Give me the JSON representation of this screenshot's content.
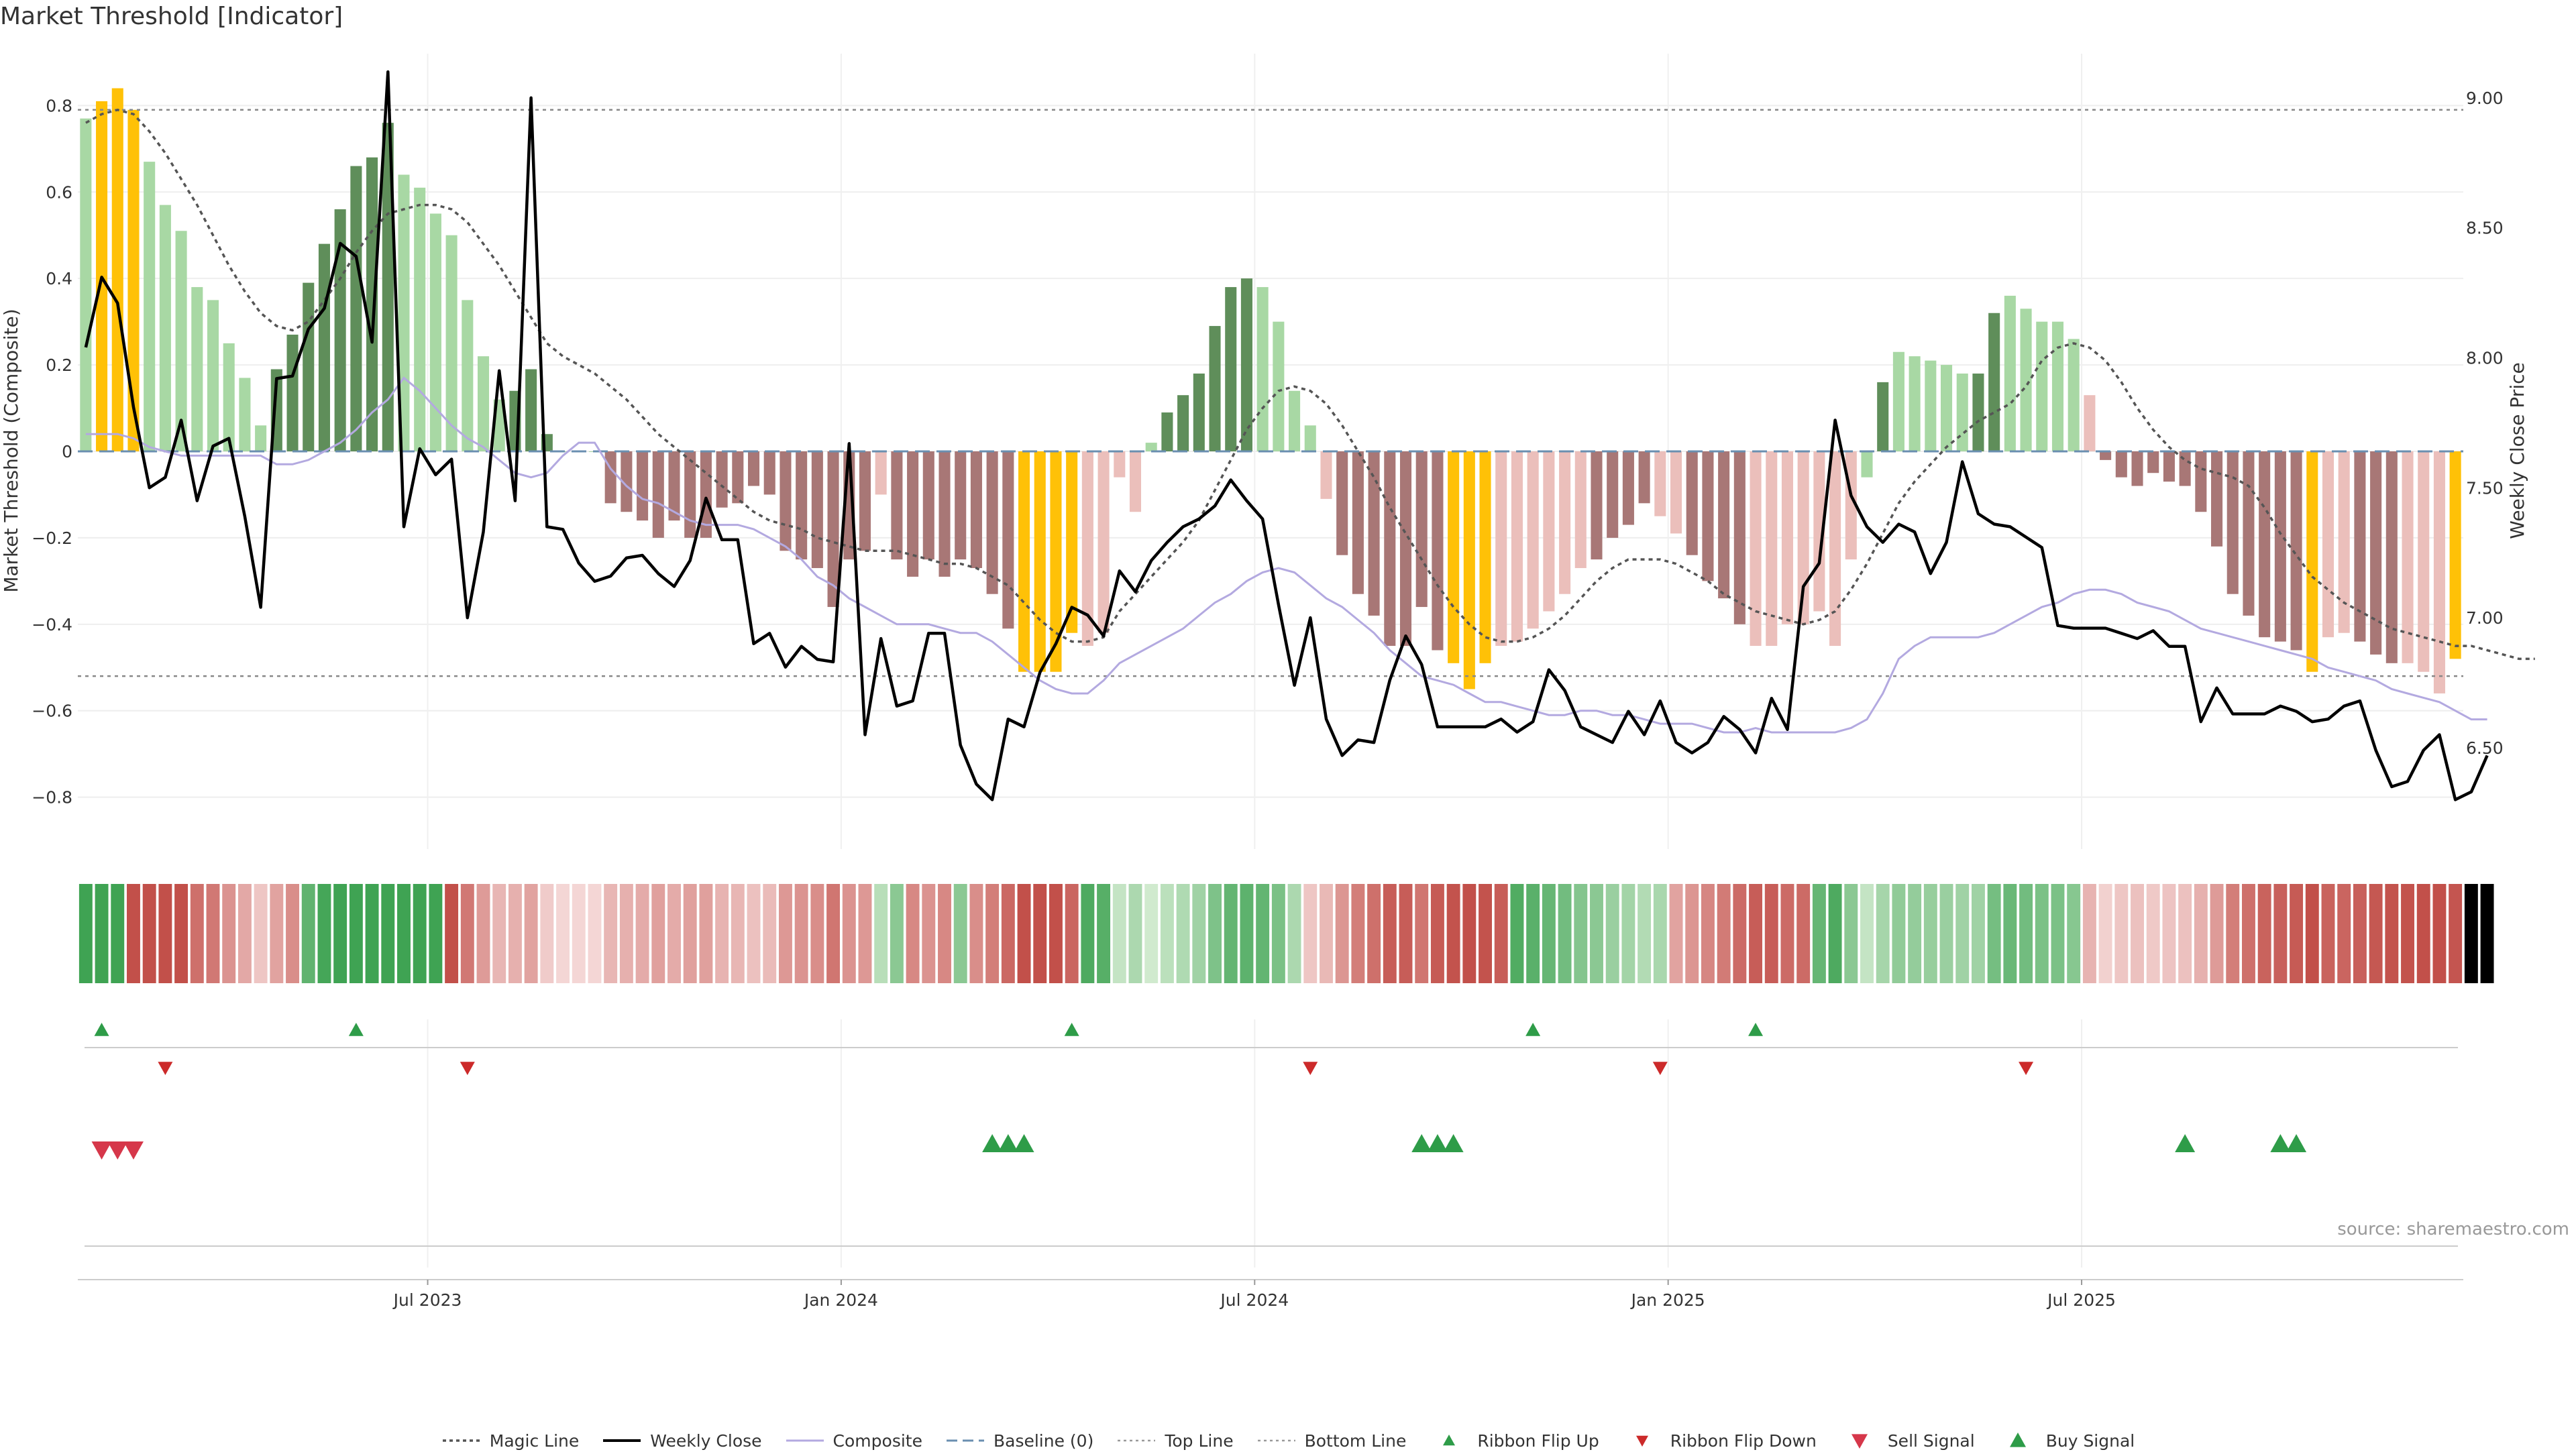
{
  "title": "Market Threshold [Indicator]",
  "source": "source: sharemaestro.com",
  "colors": {
    "strong_green": "#5f8e5a",
    "light_green": "#a8d8a4",
    "strong_red": "#a87776",
    "light_red": "#ebbfbb",
    "gold": "#ffc107",
    "weekly_close": "#000000",
    "magic_line": "#555555",
    "composite": "#b3a9e0",
    "baseline": "#6a8fb0",
    "buy": "#2e9c48",
    "sell": "#d6374a",
    "flip_up": "#2e9c48",
    "flip_down": "#cc2a2a"
  },
  "chart_data": {
    "type": "bar",
    "xlabel": "",
    "ylabel_left": "Market Threshold (Composite)",
    "ylabel_right": "Weekly Close Price",
    "left_ylim": [
      -0.92,
      0.92
    ],
    "right_ylim": [
      6.11,
      9.17
    ],
    "left_ticks": [
      "0.8",
      "0.6",
      "0.4",
      "0.2",
      "0",
      "−0.2",
      "−0.4",
      "−0.6",
      "−0.8"
    ],
    "right_ticks": [
      "9.00",
      "8.50",
      "8.00",
      "7.50",
      "7.00",
      "6.50"
    ],
    "x_ticks": [
      {
        "label": "Jul 2023",
        "week": 21.5
      },
      {
        "label": "Jan 2024",
        "week": 47.5
      },
      {
        "label": "Jul 2024",
        "week": 73.5
      },
      {
        "label": "Jan 2025",
        "week": 99.5
      },
      {
        "label": "Jul 2025",
        "week": 125.5
      }
    ],
    "top_line": 0.79,
    "bottom_line": -0.52,
    "baseline": 0,
    "bars": [
      0.77,
      0.81,
      0.84,
      0.79,
      0.67,
      0.57,
      0.51,
      0.38,
      0.35,
      0.25,
      0.17,
      0.06,
      0.19,
      0.27,
      0.39,
      0.48,
      0.56,
      0.66,
      0.68,
      0.76,
      0.64,
      0.61,
      0.55,
      0.5,
      0.35,
      0.22,
      0.12,
      0.14,
      0.19,
      0.04,
      0.0,
      0.0,
      0.0,
      -0.12,
      -0.14,
      -0.16,
      -0.2,
      -0.16,
      -0.2,
      -0.2,
      -0.13,
      -0.12,
      -0.08,
      -0.1,
      -0.23,
      -0.25,
      -0.27,
      -0.36,
      -0.25,
      -0.23,
      -0.1,
      -0.25,
      -0.29,
      -0.25,
      -0.29,
      -0.25,
      -0.27,
      -0.33,
      -0.41,
      -0.51,
      -0.51,
      -0.51,
      -0.42,
      -0.45,
      -0.42,
      -0.06,
      -0.14,
      0.02,
      0.09,
      0.13,
      0.18,
      0.29,
      0.38,
      0.4,
      0.38,
      0.3,
      0.14,
      0.06,
      -0.11,
      -0.24,
      -0.33,
      -0.38,
      -0.45,
      -0.45,
      -0.36,
      -0.46,
      -0.49,
      -0.55,
      -0.49,
      -0.45,
      -0.44,
      -0.41,
      -0.37,
      -0.33,
      -0.27,
      -0.25,
      -0.2,
      -0.17,
      -0.12,
      -0.15,
      -0.19,
      -0.24,
      -0.3,
      -0.34,
      -0.4,
      -0.45,
      -0.45,
      -0.4,
      -0.4,
      -0.37,
      -0.45,
      -0.25,
      -0.06,
      0.16,
      0.23,
      0.22,
      0.21,
      0.2,
      0.18,
      0.18,
      0.32,
      0.36,
      0.33,
      0.3,
      0.3,
      0.26,
      0.13,
      -0.02,
      -0.06,
      -0.08,
      -0.05,
      -0.07,
      -0.08,
      -0.14,
      -0.22,
      -0.33,
      -0.38,
      -0.43,
      -0.44,
      -0.46,
      -0.51,
      -0.43,
      -0.42,
      -0.44,
      -0.47,
      -0.49,
      -0.49,
      -0.51,
      -0.56,
      -0.48
    ],
    "bar_colors": [
      "lg",
      "go",
      "go",
      "go",
      "lg",
      "lg",
      "lg",
      "lg",
      "lg",
      "lg",
      "lg",
      "lg",
      "sg",
      "sg",
      "sg",
      "sg",
      "sg",
      "sg",
      "sg",
      "sg",
      "lg",
      "lg",
      "lg",
      "lg",
      "lg",
      "lg",
      "lg",
      "sg",
      "sg",
      "sg",
      "lg",
      "lg",
      "lg",
      "sr",
      "sr",
      "sr",
      "sr",
      "sr",
      "sr",
      "sr",
      "sr",
      "sr",
      "sr",
      "sr",
      "sr",
      "sr",
      "sr",
      "sr",
      "sr",
      "sr",
      "lr",
      "sr",
      "sr",
      "sr",
      "sr",
      "sr",
      "sr",
      "sr",
      "sr",
      "go",
      "go",
      "go",
      "go",
      "lr",
      "lr",
      "lr",
      "lr",
      "lg",
      "sg",
      "sg",
      "sg",
      "sg",
      "sg",
      "sg",
      "lg",
      "lg",
      "lg",
      "lg",
      "lr",
      "sr",
      "sr",
      "sr",
      "sr",
      "sr",
      "sr",
      "sr",
      "go",
      "go",
      "go",
      "lr",
      "lr",
      "lr",
      "lr",
      "lr",
      "lr",
      "sr",
      "sr",
      "sr",
      "sr",
      "lr",
      "lr",
      "sr",
      "sr",
      "sr",
      "sr",
      "lr",
      "lr",
      "lr",
      "lr",
      "lr",
      "lr",
      "lr",
      "lg",
      "sg",
      "lg",
      "lg",
      "lg",
      "lg",
      "lg",
      "sg",
      "sg",
      "lg",
      "lg",
      "lg",
      "lg",
      "lg",
      "lr",
      "sr",
      "sr",
      "sr",
      "sr",
      "sr",
      "sr",
      "sr",
      "sr",
      "sr",
      "sr",
      "sr",
      "sr",
      "sr",
      "go",
      "lr",
      "lr",
      "sr",
      "sr",
      "sr",
      "lr",
      "lr",
      "lr",
      "go",
      "go",
      "lr"
    ],
    "magic_line": [
      0.76,
      0.78,
      0.79,
      0.78,
      0.74,
      0.69,
      0.63,
      0.57,
      0.5,
      0.43,
      0.37,
      0.32,
      0.29,
      0.28,
      0.3,
      0.35,
      0.4,
      0.46,
      0.51,
      0.55,
      0.56,
      0.57,
      0.57,
      0.56,
      0.53,
      0.48,
      0.43,
      0.37,
      0.31,
      0.25,
      0.22,
      0.2,
      0.18,
      0.15,
      0.12,
      0.08,
      0.04,
      0.01,
      -0.02,
      -0.05,
      -0.08,
      -0.11,
      -0.14,
      -0.16,
      -0.17,
      -0.18,
      -0.2,
      -0.21,
      -0.22,
      -0.23,
      -0.23,
      -0.23,
      -0.24,
      -0.25,
      -0.26,
      -0.26,
      -0.27,
      -0.29,
      -0.31,
      -0.35,
      -0.39,
      -0.42,
      -0.44,
      -0.44,
      -0.43,
      -0.37,
      -0.33,
      -0.29,
      -0.25,
      -0.21,
      -0.16,
      -0.09,
      -0.02,
      0.05,
      0.1,
      0.14,
      0.15,
      0.14,
      0.11,
      0.06,
      0.0,
      -0.06,
      -0.13,
      -0.19,
      -0.25,
      -0.31,
      -0.36,
      -0.4,
      -0.43,
      -0.44,
      -0.44,
      -0.43,
      -0.41,
      -0.38,
      -0.34,
      -0.3,
      -0.27,
      -0.25,
      -0.25,
      -0.25,
      -0.26,
      -0.28,
      -0.3,
      -0.33,
      -0.35,
      -0.37,
      -0.38,
      -0.39,
      -0.4,
      -0.39,
      -0.37,
      -0.32,
      -0.26,
      -0.19,
      -0.12,
      -0.07,
      -0.03,
      0.01,
      0.04,
      0.07,
      0.09,
      0.11,
      0.15,
      0.21,
      0.24,
      0.25,
      0.24,
      0.21,
      0.16,
      0.1,
      0.05,
      0.01,
      -0.02,
      -0.04,
      -0.05,
      -0.06,
      -0.08,
      -0.13,
      -0.19,
      -0.24,
      -0.29,
      -0.32,
      -0.35,
      -0.37,
      -0.39,
      -0.41,
      -0.42,
      -0.43,
      -0.44,
      -0.45,
      -0.45,
      -0.46,
      -0.47,
      -0.48,
      -0.48
    ],
    "composite": [
      0.04,
      0.04,
      0.04,
      0.03,
      0.01,
      0.0,
      -0.01,
      -0.01,
      -0.01,
      -0.01,
      -0.01,
      -0.01,
      -0.03,
      -0.03,
      -0.02,
      0.0,
      0.02,
      0.05,
      0.09,
      0.12,
      0.17,
      0.14,
      0.1,
      0.06,
      0.03,
      0.01,
      -0.02,
      -0.05,
      -0.06,
      -0.05,
      -0.01,
      0.02,
      0.02,
      -0.04,
      -0.08,
      -0.11,
      -0.12,
      -0.14,
      -0.16,
      -0.17,
      -0.17,
      -0.17,
      -0.18,
      -0.2,
      -0.22,
      -0.25,
      -0.29,
      -0.31,
      -0.34,
      -0.36,
      -0.38,
      -0.4,
      -0.4,
      -0.4,
      -0.41,
      -0.42,
      -0.42,
      -0.44,
      -0.47,
      -0.5,
      -0.53,
      -0.55,
      -0.56,
      -0.56,
      -0.53,
      -0.49,
      -0.47,
      -0.45,
      -0.43,
      -0.41,
      -0.38,
      -0.35,
      -0.33,
      -0.3,
      -0.28,
      -0.27,
      -0.28,
      -0.31,
      -0.34,
      -0.36,
      -0.39,
      -0.42,
      -0.46,
      -0.49,
      -0.52,
      -0.53,
      -0.54,
      -0.56,
      -0.58,
      -0.58,
      -0.59,
      -0.6,
      -0.61,
      -0.61,
      -0.6,
      -0.6,
      -0.61,
      -0.61,
      -0.62,
      -0.63,
      -0.63,
      -0.63,
      -0.64,
      -0.65,
      -0.65,
      -0.64,
      -0.65,
      -0.65,
      -0.65,
      -0.65,
      -0.65,
      -0.64,
      -0.62,
      -0.56,
      -0.48,
      -0.45,
      -0.43,
      -0.43,
      -0.43,
      -0.43,
      -0.42,
      -0.4,
      -0.38,
      -0.36,
      -0.35,
      -0.33,
      -0.32,
      -0.32,
      -0.33,
      -0.35,
      -0.36,
      -0.37,
      -0.39,
      -0.41,
      -0.42,
      -0.43,
      -0.44,
      -0.45,
      -0.46,
      -0.47,
      -0.48,
      -0.5,
      -0.51,
      -0.52,
      -0.53,
      -0.55,
      -0.56,
      -0.57,
      -0.58,
      -0.6,
      -0.62,
      -0.62
    ],
    "weekly_close": [
      8.04,
      8.31,
      8.21,
      7.81,
      7.5,
      7.54,
      7.76,
      7.45,
      7.66,
      7.69,
      7.39,
      7.04,
      7.92,
      7.93,
      8.11,
      8.19,
      8.44,
      8.39,
      8.06,
      9.1,
      7.35,
      7.65,
      7.55,
      7.61,
      7.0,
      7.33,
      7.95,
      7.45,
      9.0,
      7.35,
      7.34,
      7.21,
      7.14,
      7.16,
      7.23,
      7.24,
      7.17,
      7.12,
      7.22,
      7.46,
      7.3,
      7.3,
      6.9,
      6.94,
      6.81,
      6.89,
      6.84,
      6.83,
      7.67,
      6.55,
      6.92,
      6.66,
      6.68,
      6.94,
      6.94,
      6.51,
      6.36,
      6.3,
      6.61,
      6.58,
      6.79,
      6.9,
      7.04,
      7.01,
      6.93,
      7.18,
      7.1,
      7.22,
      7.29,
      7.35,
      7.38,
      7.43,
      7.53,
      7.45,
      7.38,
      7.05,
      6.74,
      7.0,
      6.61,
      6.47,
      6.53,
      6.52,
      6.76,
      6.93,
      6.82,
      6.58,
      6.58,
      6.58,
      6.58,
      6.61,
      6.56,
      6.6,
      6.8,
      6.72,
      6.58,
      6.55,
      6.52,
      6.64,
      6.55,
      6.68,
      6.52,
      6.48,
      6.52,
      6.62,
      6.57,
      6.48,
      6.69,
      6.57,
      7.12,
      7.21,
      7.76,
      7.47,
      7.35,
      7.29,
      7.36,
      7.33,
      7.17,
      7.29,
      7.6,
      7.4,
      7.36,
      7.35,
      7.31,
      7.27,
      6.97,
      6.96,
      6.96,
      6.96,
      6.94,
      6.92,
      6.95,
      6.89,
      6.89,
      6.6,
      6.73,
      6.63,
      6.63,
      6.63,
      6.66,
      6.64,
      6.6,
      6.61,
      6.66,
      6.68,
      6.49,
      6.35,
      6.37,
      6.49,
      6.55,
      6.3,
      6.33,
      6.47
    ]
  },
  "signals": {
    "ribbon_flip_up_weeks": [
      1,
      17,
      62,
      91,
      105
    ],
    "ribbon_flip_down_weeks": [
      5,
      24,
      77,
      99,
      122
    ],
    "sell_signal_weeks": [
      1,
      2,
      3
    ],
    "buy_signal_weeks": [
      57,
      58,
      59,
      84,
      85,
      86,
      132,
      138,
      139
    ]
  },
  "legend": [
    {
      "label": "Magic Line",
      "marker": "dotted-line"
    },
    {
      "label": "Weekly Close",
      "marker": "solid-line"
    },
    {
      "label": "Composite",
      "marker": "lavender-line"
    },
    {
      "label": "Baseline (0)",
      "marker": "dashed-line"
    },
    {
      "label": "Top Line",
      "marker": "light-dotted-line"
    },
    {
      "label": "Bottom Line",
      "marker": "light-dotted-line"
    },
    {
      "label": "Ribbon Flip Up",
      "marker": "triangle-up-small"
    },
    {
      "label": "Ribbon Flip Down",
      "marker": "triangle-down-small"
    },
    {
      "label": "Sell Signal",
      "marker": "triangle-down-large"
    },
    {
      "label": "Buy Signal",
      "marker": "triangle-up-large"
    }
  ]
}
